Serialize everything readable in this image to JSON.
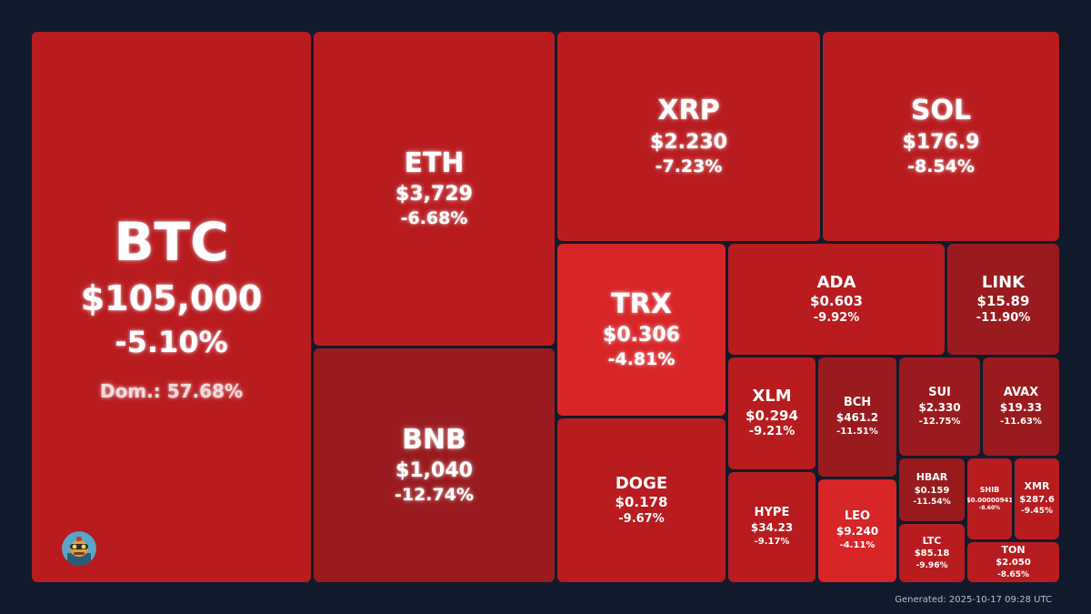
{
  "chart_data": {
    "type": "treemap",
    "tiles": [
      {
        "id": "btc",
        "symbol": "BTC",
        "price": "$105,000",
        "change": "-5.10%",
        "extra": "Dom.: 57.68%",
        "color": "#b81c1f"
      },
      {
        "id": "eth",
        "symbol": "ETH",
        "price": "$3,729",
        "change": "-6.68%",
        "color": "#b81c1f"
      },
      {
        "id": "bnb",
        "symbol": "BNB",
        "price": "$1,040",
        "change": "-12.74%",
        "color": "#991b1e"
      },
      {
        "id": "xrp",
        "symbol": "XRP",
        "price": "$2.230",
        "change": "-7.23%",
        "color": "#b81c1f"
      },
      {
        "id": "sol",
        "symbol": "SOL",
        "price": "$176.9",
        "change": "-8.54%",
        "color": "#b81c1f"
      },
      {
        "id": "trx",
        "symbol": "TRX",
        "price": "$0.306",
        "change": "-4.81%",
        "color": "#d72528"
      },
      {
        "id": "doge",
        "symbol": "DOGE",
        "price": "$0.178",
        "change": "-9.67%",
        "color": "#b81c1f"
      },
      {
        "id": "ada",
        "symbol": "ADA",
        "price": "$0.603",
        "change": "-9.92%",
        "color": "#b81c1f"
      },
      {
        "id": "link",
        "symbol": "LINK",
        "price": "$15.89",
        "change": "-11.90%",
        "color": "#991b1e"
      },
      {
        "id": "xlm",
        "symbol": "XLM",
        "price": "$0.294",
        "change": "-9.21%",
        "color": "#b81c1f"
      },
      {
        "id": "bch",
        "symbol": "BCH",
        "price": "$461.2",
        "change": "-11.51%",
        "color": "#991b1e"
      },
      {
        "id": "sui",
        "symbol": "SUI",
        "price": "$2.330",
        "change": "-12.75%",
        "color": "#991b1e"
      },
      {
        "id": "avax",
        "symbol": "AVAX",
        "price": "$19.33",
        "change": "-11.63%",
        "color": "#991b1e"
      },
      {
        "id": "hype",
        "symbol": "HYPE",
        "price": "$34.23",
        "change": "-9.17%",
        "color": "#b81c1f"
      },
      {
        "id": "leo",
        "symbol": "LEO",
        "price": "$9.240",
        "change": "-4.11%",
        "color": "#d72528"
      },
      {
        "id": "hbar",
        "symbol": "HBAR",
        "price": "$0.159",
        "change": "-11.54%",
        "color": "#991b1e"
      },
      {
        "id": "shib",
        "symbol": "SHIB",
        "price": "$0.00000941",
        "change": "-8.60%",
        "color": "#b81c1f"
      },
      {
        "id": "xmr",
        "symbol": "XMR",
        "price": "$287.6",
        "change": "-9.45%",
        "color": "#b81c1f"
      },
      {
        "id": "ltc",
        "symbol": "LTC",
        "price": "$85.18",
        "change": "-9.96%",
        "color": "#b81c1f"
      },
      {
        "id": "ton",
        "symbol": "TON",
        "price": "$2.050",
        "change": "-8.65%",
        "color": "#b81c1f"
      }
    ]
  },
  "footer": {
    "generated": "Generated: 2025-10-17 09:28 UTC"
  },
  "avatar": {
    "icon": "robot-avatar-icon"
  }
}
